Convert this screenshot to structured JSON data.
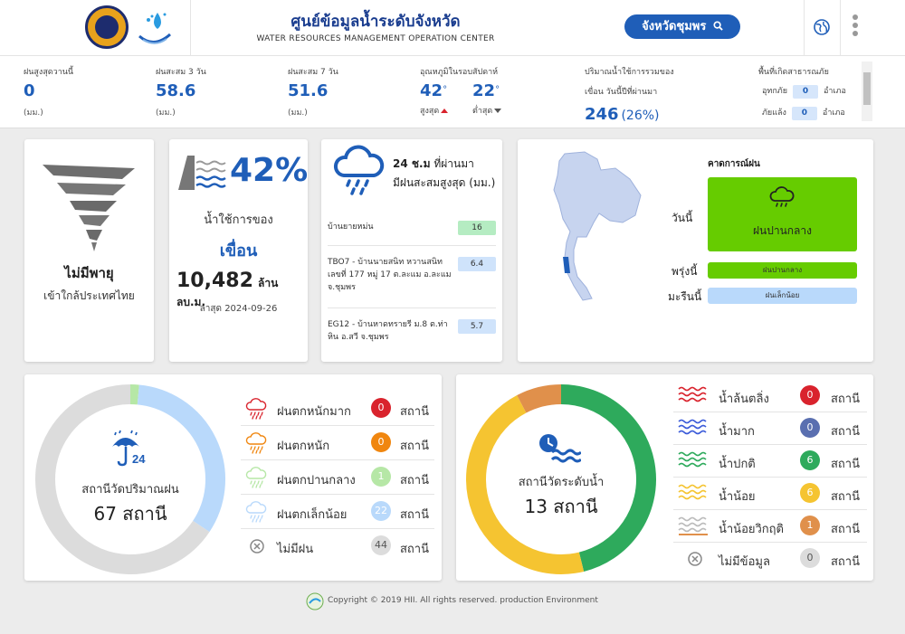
{
  "header": {
    "title": "ศูนย์ข้อมูลน้ำระดับจังหวัด",
    "subtitle": "WATER RESOURCES MANAGEMENT OPERATION CENTER",
    "province_button": "จังหวัดชุมพร",
    "icons": [
      "search-icon",
      "globe-icon",
      "more-vert-icon"
    ]
  },
  "stats": {
    "rain_today": {
      "label": "ฝนสูงสุดวานนี้",
      "value": "0",
      "unit": "(มม.)"
    },
    "rain_3day": {
      "label": "ฝนสะสม 3 วัน",
      "value": "58.6",
      "unit": "(มม.)"
    },
    "rain_7day": {
      "label": "ฝนสะสม 7 วัน",
      "value": "51.6",
      "unit": "(มม.)"
    },
    "temperature": {
      "label": "อุณหภูมิในรอบสัปดาห์",
      "max": "42",
      "max_label": "สูงสุด",
      "min": "22",
      "min_label": "ต่ำสุด",
      "degree": "°"
    },
    "dam_storage": {
      "label_line1": "ปริมาณน้ำใช้การรวมของ",
      "label_line2": "เขื่อน วันนี้ปีที่ผ่านมา",
      "value": "246",
      "percent": "(26%)"
    },
    "disaster": {
      "label": "พื้นที่เกิดสาธารณภัย",
      "flood_label": "อุทกภัย",
      "flood_value": "0",
      "drought_label": "ภัยแล้ง",
      "drought_value": "0",
      "unit": "อำเภอ"
    }
  },
  "storm": {
    "title": "ไม่มีพายุ",
    "subtitle": "เข้าใกล้ประเทศไทย"
  },
  "dam": {
    "percent": "42%",
    "label1": "น้ำใช้การของ",
    "label2": "เขื่อน",
    "volume": "10,482",
    "volume_unit": "ล้าน ลบ.ม.",
    "updated": "ล่าสุด 2024-09-26"
  },
  "rain24": {
    "title_bold": "24 ช.ม",
    "title_rest": "ที่ผ่านมา",
    "title_line2": "มีฝนสะสมสูงสุด (มม.)",
    "stations": [
      {
        "name": "บ้านยายหม่น",
        "value": "16",
        "color": "#b5ecc2"
      },
      {
        "name": "TBO7 - บ้านนายสนิท หวานสนิท เลขที่ 177 หมู่ 17 ต.ละแม อ.ละแม จ.ชุมพร",
        "value": "6.4",
        "color": "#cfe3fb"
      },
      {
        "name": "EG12 - บ้านหาดทรายรี ม.8 ต.ท่าหิน อ.สวี จ.ชุมพร",
        "value": "5.7",
        "color": "#cfe3fb"
      }
    ]
  },
  "forecast": {
    "title": "คาดการณ์ฝน",
    "today_label": "วันนี้",
    "today_value": "ฝนปานกลาง",
    "tomorrow_label": "พรุ่งนี้",
    "tomorrow_value": "ฝนปานกลาง",
    "day_after_label": "มะรืนนี้",
    "day_after_value": "ฝนเล็กน้อย",
    "colors": {
      "moderate": "#66cc00",
      "light": "#b9d9fb"
    }
  },
  "rain_stations": {
    "center_label": "สถานีวัดปริมาณฝน",
    "center_value": "67 สถานี",
    "legend": [
      {
        "label": "ฝนตกหนักมาก",
        "count": "0",
        "unit": "สถานี",
        "color": "#d9232d",
        "icon": "cloud-heavy-rain-icon"
      },
      {
        "label": "ฝนตกหนัก",
        "count": "0",
        "unit": "สถานี",
        "color": "#f0860f",
        "icon": "cloud-rain-icon"
      },
      {
        "label": "ฝนตกปานกลาง",
        "count": "1",
        "unit": "สถานี",
        "color": "#b6e7a6",
        "icon": "cloud-moderate-rain-icon"
      },
      {
        "label": "ฝนตกเล็กน้อย",
        "count": "22",
        "unit": "สถานี",
        "color": "#b9d9fb",
        "icon": "cloud-light-rain-icon"
      },
      {
        "label": "ไม่มีฝน",
        "count": "44",
        "unit": "สถานี",
        "color": "#dcdcdc",
        "icon": "no-rain-icon"
      }
    ]
  },
  "water_level": {
    "center_label": "สถานีวัดระดับน้ำ",
    "center_value": "13 สถานี",
    "legend": [
      {
        "label": "น้ำล้นตลิ่ง",
        "count": "0",
        "unit": "สถานี",
        "color": "#d9232d",
        "wave": "#d9232d"
      },
      {
        "label": "น้ำมาก",
        "count": "0",
        "unit": "สถานี",
        "color": "#5a6fb0",
        "wave": "#3b5bd9"
      },
      {
        "label": "น้ำปกติ",
        "count": "6",
        "unit": "สถานี",
        "color": "#2eaa5c",
        "wave": "#2eaa5c"
      },
      {
        "label": "น้ำน้อย",
        "count": "6",
        "unit": "สถานี",
        "color": "#f5c431",
        "wave": "#f5c431"
      },
      {
        "label": "น้ำน้อยวิกฤติ",
        "count": "1",
        "unit": "สถานี",
        "color": "#e0904b",
        "wave": "#bbbbbb"
      },
      {
        "label": "ไม่มีข้อมูล",
        "count": "0",
        "unit": "สถานี",
        "color": "#dcdcdc",
        "wave": "none"
      }
    ]
  },
  "chart_data": [
    {
      "type": "pie",
      "title": "สถานีวัดปริมาณฝน",
      "categories": [
        "ฝนตกหนักมาก",
        "ฝนตกหนัก",
        "ฝนตกปานกลาง",
        "ฝนตกเล็กน้อย",
        "ไม่มีฝน"
      ],
      "values": [
        0,
        0,
        1,
        22,
        44
      ],
      "colors": [
        "#d9232d",
        "#f0860f",
        "#b6e7a6",
        "#b9d9fb",
        "#dcdcdc"
      ]
    },
    {
      "type": "pie",
      "title": "สถานีวัดระดับน้ำ",
      "categories": [
        "น้ำล้นตลิ่ง",
        "น้ำมาก",
        "น้ำปกติ",
        "น้ำน้อย",
        "น้ำน้อยวิกฤติ",
        "ไม่มีข้อมูล"
      ],
      "values": [
        0,
        0,
        6,
        6,
        1,
        0
      ],
      "colors": [
        "#d9232d",
        "#5a6fb0",
        "#2eaa5c",
        "#f5c431",
        "#e0904b",
        "#dcdcdc"
      ]
    }
  ],
  "footer": {
    "text": "Copyright © 2019 HII. All rights reserved. production Environment"
  }
}
